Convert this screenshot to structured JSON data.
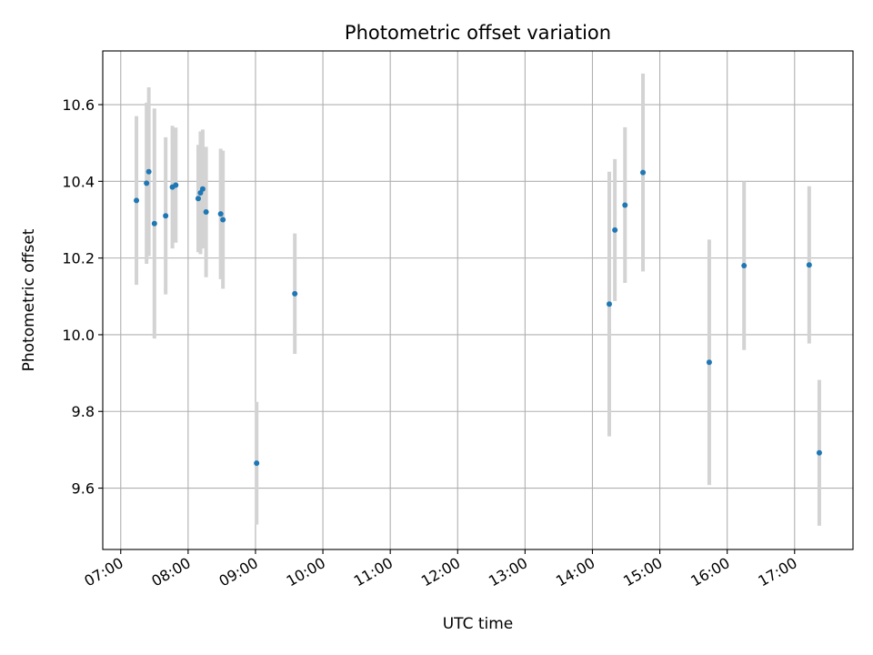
{
  "chart_data": {
    "type": "scatter",
    "title": "Photometric offset variation",
    "xlabel": "UTC time",
    "ylabel": "Photometric offset",
    "x_tick_labels": [
      "07:00",
      "08:00",
      "09:00",
      "10:00",
      "11:00",
      "12:00",
      "13:00",
      "14:00",
      "15:00",
      "16:00",
      "17:00"
    ],
    "y_tick_labels": [
      "9.6",
      "9.8",
      "10.0",
      "10.2",
      "10.4",
      "10.6"
    ],
    "xlim": [
      "06:44",
      "17:52"
    ],
    "ylim": [
      9.44,
      10.74
    ],
    "grid": true,
    "colors": {
      "point": "#1f77b4",
      "errorbar": "#d3d3d3",
      "grid": "#b0b0b0"
    },
    "series": [
      {
        "points": [
          {
            "x": "07:14",
            "y": 10.35,
            "err": 0.22
          },
          {
            "x": "07:23",
            "y": 10.395,
            "err": 0.21
          },
          {
            "x": "07:25",
            "y": 10.425,
            "err": 0.22
          },
          {
            "x": "07:30",
            "y": 10.29,
            "err": 0.3
          },
          {
            "x": "07:40",
            "y": 10.31,
            "err": 0.205
          },
          {
            "x": "07:46",
            "y": 10.385,
            "err": 0.16
          },
          {
            "x": "07:49",
            "y": 10.39,
            "err": 0.15
          },
          {
            "x": "08:09",
            "y": 10.355,
            "err": 0.14
          },
          {
            "x": "08:11",
            "y": 10.37,
            "err": 0.16
          },
          {
            "x": "08:13",
            "y": 10.38,
            "err": 0.155
          },
          {
            "x": "08:16",
            "y": 10.32,
            "err": 0.17
          },
          {
            "x": "08:29",
            "y": 10.315,
            "err": 0.17
          },
          {
            "x": "08:31",
            "y": 10.3,
            "err": 0.18
          },
          {
            "x": "09:01",
            "y": 9.665,
            "err": 0.16
          },
          {
            "x": "09:35",
            "y": 10.107,
            "err": 0.157
          },
          {
            "x": "14:15",
            "y": 10.08,
            "err": 0.345
          },
          {
            "x": "14:20",
            "y": 10.273,
            "err": 0.185
          },
          {
            "x": "14:29",
            "y": 10.338,
            "err": 0.203
          },
          {
            "x": "14:45",
            "y": 10.423,
            "err": 0.258
          },
          {
            "x": "15:44",
            "y": 9.928,
            "err": 0.32
          },
          {
            "x": "16:15",
            "y": 10.18,
            "err": 0.22
          },
          {
            "x": "17:13",
            "y": 10.182,
            "err": 0.205
          },
          {
            "x": "17:22",
            "y": 9.692,
            "err": 0.19
          }
        ]
      }
    ]
  }
}
